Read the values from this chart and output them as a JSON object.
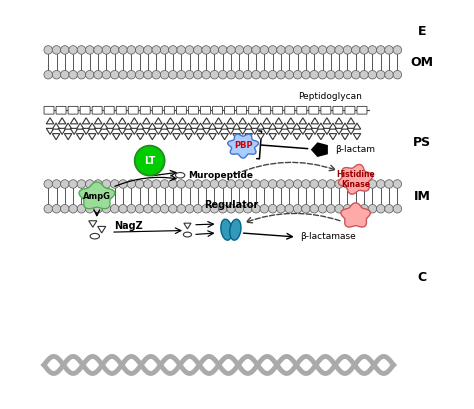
{
  "fig_width": 4.74,
  "fig_height": 4.09,
  "dpi": 100,
  "bg_color": "#ffffff",
  "label_E": "E",
  "label_OM": "OM",
  "label_PS": "PS",
  "label_IM": "IM",
  "label_C": "C",
  "label_PBP": "PBP",
  "label_LT": "LT",
  "label_beta_lactam": "β-lactam",
  "label_Peptidoglycan": "Peptidoglycan",
  "label_Muropeptide": "Muropeptide",
  "label_AmpG": "AmpG",
  "label_NagZ": "NagZ",
  "label_Regulator": "Regulator",
  "label_beta_lactamase": "β-lactamase",
  "label_Histidine_Kinase": "Histidine\nKinase",
  "membrane_head_color": "#cccccc",
  "LT_color": "#00cc00",
  "PBP_color": "#aaccff",
  "AmpG_color": "#99dd99",
  "HK_color": "#ffaaaa",
  "Regulator_color": "#3399bb",
  "DNA_color": "#aaaaaa"
}
